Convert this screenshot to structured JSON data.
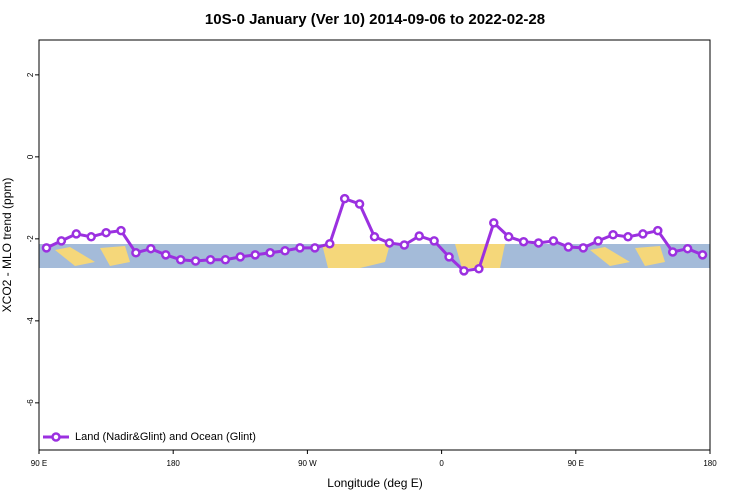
{
  "chart_data": {
    "type": "line",
    "title": "10S-0 January (Ver 10)   2014-09-06 to 2022-02-28",
    "x_label": "Longitude (deg E)",
    "y_label": "XCO2 - MLO trend (ppm)",
    "x": [
      95,
      105,
      115,
      125,
      135,
      145,
      155,
      165,
      175,
      185,
      195,
      205,
      215,
      225,
      235,
      245,
      255,
      265,
      275,
      285,
      295,
      305,
      315,
      325,
      335,
      345,
      355,
      365,
      375,
      385,
      395,
      405,
      415,
      425,
      435,
      445,
      455,
      465,
      475,
      485,
      495,
      505,
      515,
      525,
      535
    ],
    "series": [
      {
        "name": "Land (Nadir&Glint) and Ocean (Glint)",
        "color": "#9b30e0",
        "values": [
          -2.22,
          -2.05,
          -1.88,
          -1.95,
          -1.85,
          -1.8,
          -2.34,
          -2.24,
          -2.39,
          -2.51,
          -2.54,
          -2.51,
          -2.51,
          -2.44,
          -2.39,
          -2.34,
          -2.29,
          -2.22,
          -2.22,
          -2.12,
          -1.02,
          -1.15,
          -1.95,
          -2.1,
          -2.15,
          -1.93,
          -2.05,
          -2.44,
          -2.78,
          -2.73,
          -1.61,
          -1.95,
          -2.07,
          -2.1,
          -2.05,
          -2.2,
          -2.22,
          -2.05,
          -1.9,
          -1.95,
          -1.88,
          -1.8,
          -2.32,
          -2.24,
          -2.39
        ]
      }
    ],
    "xlim": [
      90,
      540
    ],
    "xticks": [
      {
        "value": 90,
        "label": "90 E"
      },
      180,
      {
        "value": 270,
        "label": "90 W"
      },
      {
        "value": 360,
        "label": "0"
      },
      {
        "value": 450,
        "label": "90 E"
      },
      {
        "value": 540,
        "label": "180"
      }
    ],
    "ylim": [
      -7.15,
      2.85
    ],
    "yticks": [
      -6,
      -4,
      -2,
      0,
      2
    ],
    "legend": "bottom-left"
  }
}
